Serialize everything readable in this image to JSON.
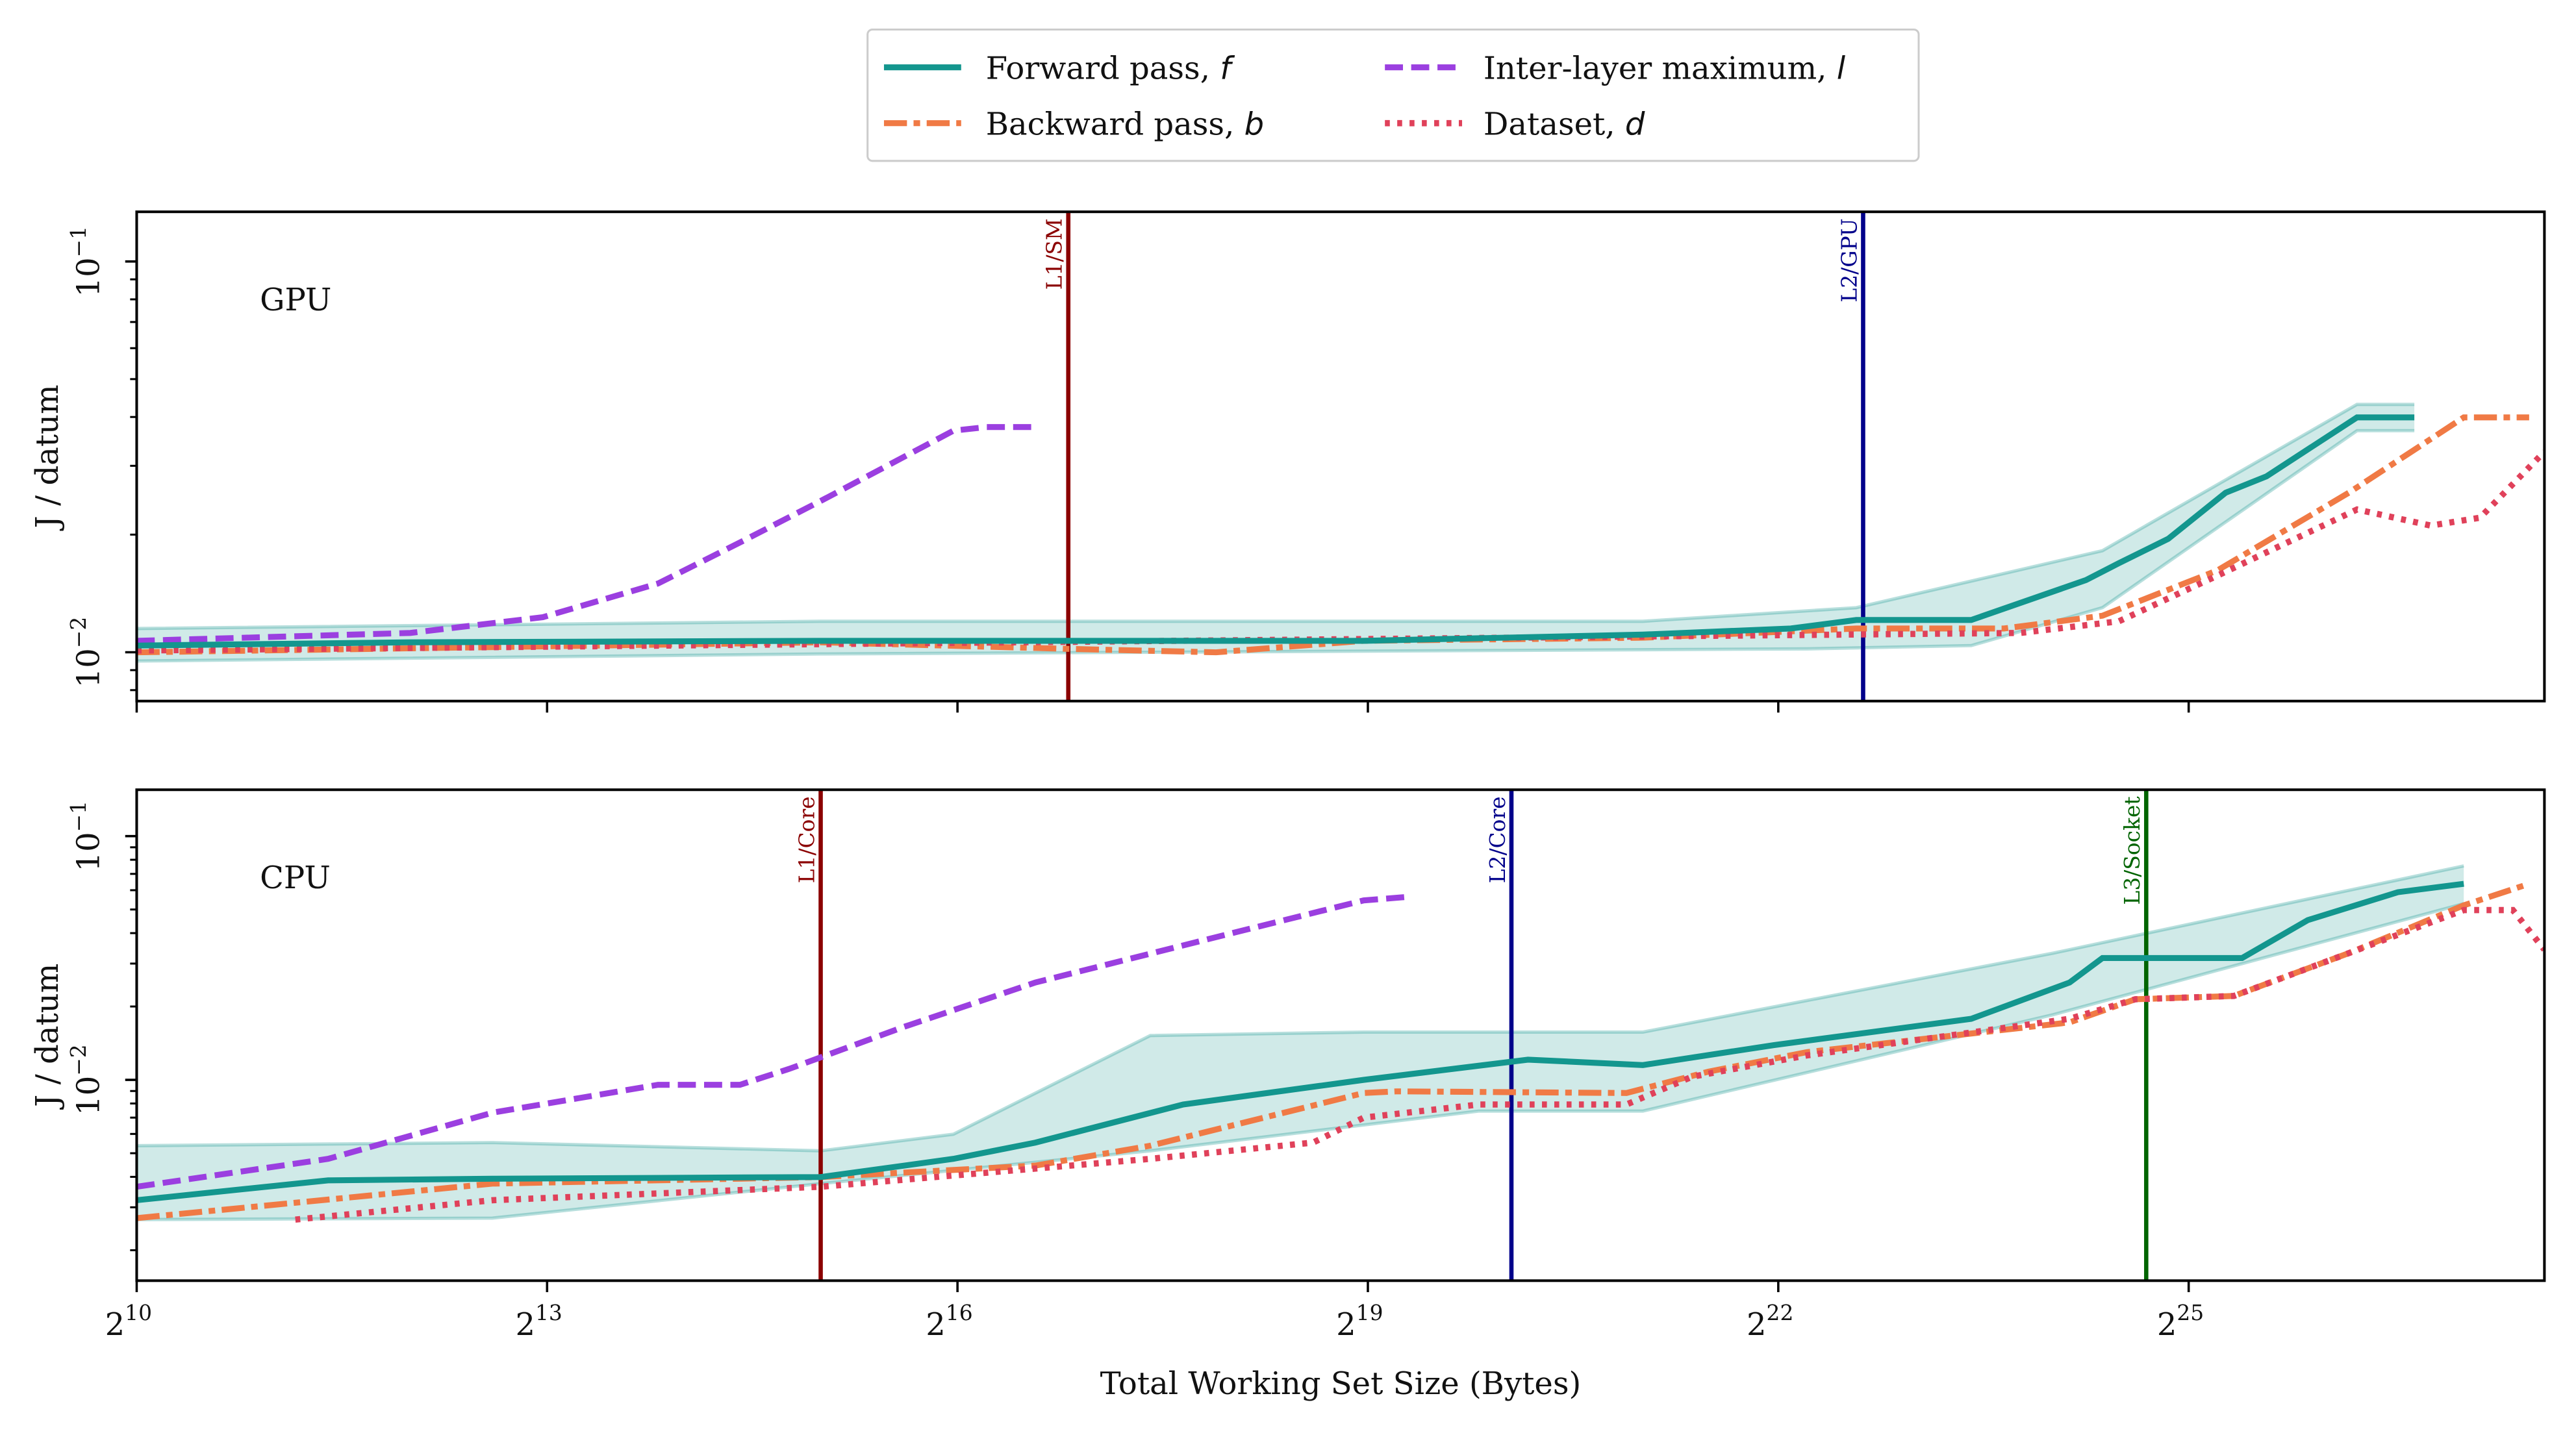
{
  "chart_data": [
    {
      "type": "line",
      "panel_label": "GPU",
      "ylabel": "J / datum",
      "xscale": "log2",
      "yscale": "log10",
      "xlim": [
        1024,
        203500000
      ],
      "ylim": [
        0.0075,
        0.134
      ],
      "yticks": [
        {
          "value": 0.01,
          "label": "10",
          "exp": "−2"
        },
        {
          "value": 0.1,
          "label": "10",
          "exp": "−1"
        }
      ],
      "xtick_labels_shown": false,
      "vlines": [
        {
          "label": "L1/SM",
          "x": 114900,
          "color": "#8b0000"
        },
        {
          "label": "L2/GPU",
          "x": 6447000,
          "color": "#00008b"
        }
      ],
      "series": [
        {
          "name": "Forward pass",
          "key": "forward",
          "points": [
            [
              1024,
              0.0104
            ],
            [
              4096,
              0.0106
            ],
            [
              32768,
              0.0107
            ],
            [
              513300,
              0.0107
            ],
            [
              2112000,
              0.0111
            ],
            [
              4467000,
              0.0115
            ],
            [
              6226000,
              0.0121
            ],
            [
              11150000,
              0.0121
            ],
            [
              19950000,
              0.0153
            ],
            [
              23560000,
              0.0169
            ],
            [
              30240000,
              0.0195
            ],
            [
              40470000,
              0.0256
            ],
            [
              49800000,
              0.0282
            ],
            [
              78720000,
              0.0399
            ],
            [
              105300000,
              0.0399
            ]
          ],
          "band_upper": [
            [
              1024,
              0.0115
            ],
            [
              32768,
              0.012
            ],
            [
              2112000,
              0.012
            ],
            [
              6226000,
              0.013
            ],
            [
              21680000,
              0.0182
            ],
            [
              78720000,
              0.0431
            ],
            [
              105300000,
              0.0431
            ]
          ],
          "band_lower": [
            [
              1024,
              0.0095
            ],
            [
              32768,
              0.0099
            ],
            [
              4853000,
              0.0102
            ],
            [
              11150000,
              0.0104
            ],
            [
              21680000,
              0.013
            ],
            [
              78720000,
              0.0369
            ],
            [
              105300000,
              0.0369
            ]
          ]
        },
        {
          "name": "Backward pass",
          "key": "backward",
          "points": [
            [
              1024,
              0.01
            ],
            [
              32768,
              0.0106
            ],
            [
              114900,
              0.0102
            ],
            [
              242900,
              0.01
            ],
            [
              513300,
              0.0107
            ],
            [
              2112000,
              0.0109
            ],
            [
              6226000,
              0.0115
            ],
            [
              13160000,
              0.0115
            ],
            [
              21680000,
              0.0124
            ],
            [
              38820000,
              0.0162
            ],
            [
              75500000,
              0.0256
            ],
            [
              135200000,
              0.0399
            ],
            [
              188400000,
              0.0399
            ]
          ]
        },
        {
          "name": "Dataset",
          "key": "dataset",
          "points": [
            [
              1024,
              0.0101
            ],
            [
              14300000,
              0.0112
            ],
            [
              23560000,
              0.012
            ],
            [
              38820000,
              0.0157
            ],
            [
              78720000,
              0.0232
            ],
            [
              114400000,
              0.0211
            ],
            [
              146800000,
              0.0221
            ],
            [
              203500000,
              0.0326
            ]
          ]
        },
        {
          "name": "Inter-layer maximum",
          "key": "inter",
          "points": [
            [
              1024,
              0.0107
            ],
            [
              4096,
              0.0112
            ],
            [
              8020,
              0.0123
            ],
            [
              14370,
              0.015
            ],
            [
              21770,
              0.0191
            ],
            [
              32768,
              0.0244
            ],
            [
              64200,
              0.0369
            ],
            [
              75830,
              0.0377
            ],
            [
              97270,
              0.0377
            ]
          ]
        }
      ]
    },
    {
      "type": "line",
      "panel_label": "CPU",
      "ylabel": "J / datum",
      "xlabel": "Total Working Set Size (Bytes)",
      "xscale": "log2",
      "yscale": "log10",
      "xlim": [
        1024,
        203500000
      ],
      "ylim": [
        0.0015,
        0.155
      ],
      "yticks": [
        {
          "value": 0.01,
          "label": "10",
          "exp": "−2"
        },
        {
          "value": 0.1,
          "label": "10",
          "exp": "−1"
        }
      ],
      "xticks": [
        {
          "value": 1024,
          "label": "2",
          "exp": "10"
        },
        {
          "value": 8192,
          "label": "2",
          "exp": "13"
        },
        {
          "value": 65536,
          "label": "2",
          "exp": "16"
        },
        {
          "value": 524288,
          "label": "2",
          "exp": "19"
        },
        {
          "value": 4194304,
          "label": "2",
          "exp": "22"
        },
        {
          "value": 33554432,
          "label": "2",
          "exp": "25"
        }
      ],
      "vlines": [
        {
          "label": "L1/Core",
          "x": 32768,
          "color": "#8b0000"
        },
        {
          "label": "L2/Core",
          "x": 1085000,
          "color": "#00008b"
        },
        {
          "label": "L3/Socket",
          "x": 27060000,
          "color": "#006400"
        }
      ],
      "series": [
        {
          "name": "Forward pass",
          "key": "forward",
          "points": [
            [
              1024,
              0.00321
            ],
            [
              2702,
              0.00387
            ],
            [
              6210,
              0.00393
            ],
            [
              32768,
              0.00399
            ],
            [
              64200,
              0.00474
            ],
            [
              97270,
              0.00553
            ],
            [
              205700,
              0.00792
            ],
            [
              513300,
              0.01
            ],
            [
              1180000,
              0.0121
            ],
            [
              2112000,
              0.0115
            ],
            [
              4106000,
              0.0139
            ],
            [
              11150000,
              0.0178
            ],
            [
              18350000,
              0.0251
            ],
            [
              21680000,
              0.0316
            ],
            [
              43990000,
              0.0316
            ],
            [
              61340000,
              0.0452
            ],
            [
              96900000,
              0.0589
            ],
            [
              135200000,
              0.0637
            ]
          ],
          "band_upper": [
            [
              1024,
              0.00537
            ],
            [
              6210,
              0.00553
            ],
            [
              32768,
              0.00512
            ],
            [
              64200,
              0.00598
            ],
            [
              174200,
              0.0152
            ],
            [
              513300,
              0.0157
            ],
            [
              2112000,
              0.0157
            ],
            [
              16890000,
              0.0331
            ],
            [
              135200000,
              0.0755
            ]
          ],
          "band_lower": [
            [
              1024,
              0.00267
            ],
            [
              6210,
              0.00271
            ],
            [
              32768,
              0.00375
            ],
            [
              174200,
              0.00512
            ],
            [
              919100,
              0.00745
            ],
            [
              2112000,
              0.00745
            ],
            [
              16890000,
              0.0185
            ],
            [
              135200000,
              0.0528
            ]
          ]
        },
        {
          "name": "Backward pass",
          "key": "backward",
          "points": [
            [
              1024,
              0.00271
            ],
            [
              6210,
              0.00375
            ],
            [
              32768,
              0.00399
            ],
            [
              97270,
              0.00445
            ],
            [
              174200,
              0.00537
            ],
            [
              513300,
              0.00883
            ],
            [
              606600,
              0.00897
            ],
            [
              1943000,
              0.00883
            ],
            [
              2945000,
              0.0108
            ],
            [
              4853000,
              0.013
            ],
            [
              18350000,
              0.0172
            ],
            [
              25600000,
              0.0214
            ],
            [
              42180000,
              0.0221
            ],
            [
              75500000,
              0.0331
            ],
            [
              135200000,
              0.052
            ],
            [
              188400000,
              0.0637
            ]
          ]
        },
        {
          "name": "Dataset",
          "key": "dataset",
          "points": [
            [
              2288,
              0.00267
            ],
            [
              6210,
              0.00321
            ],
            [
              32768,
              0.00364
            ],
            [
              174200,
              0.00474
            ],
            [
              397400,
              0.00553
            ],
            [
              513300,
              0.007
            ],
            [
              919100,
              0.00792
            ],
            [
              1943000,
              0.00792
            ],
            [
              2710000,
              0.0103
            ],
            [
              4853000,
              0.0126
            ],
            [
              18350000,
              0.0178
            ],
            [
              25600000,
              0.0214
            ],
            [
              42180000,
              0.0221
            ],
            [
              75500000,
              0.0331
            ],
            [
              135200000,
              0.0497
            ],
            [
              173400000,
              0.0497
            ],
            [
              203500000,
              0.0342
            ]
          ]
        },
        {
          "name": "Inter-layer maximum",
          "key": "inter",
          "points": [
            [
              1024,
              0.00364
            ],
            [
              2702,
              0.00474
            ],
            [
              6210,
              0.00733
            ],
            [
              14370,
              0.00955
            ],
            [
              21770,
              0.00955
            ],
            [
              27940,
              0.0111
            ],
            [
              50000,
              0.0165
            ],
            [
              97270,
              0.0251
            ],
            [
              262144,
              0.0399
            ],
            [
              513300,
              0.0545
            ],
            [
              632300,
              0.0562
            ]
          ]
        }
      ]
    }
  ],
  "legend": {
    "placement": "top-center",
    "entries": [
      {
        "key": "forward",
        "label": "Forward pass, ",
        "symbol": "f"
      },
      {
        "key": "backward",
        "label": "Backward pass, ",
        "symbol": "b"
      },
      {
        "key": "inter",
        "label": "Inter-layer maximum, ",
        "symbol": "l"
      },
      {
        "key": "dataset",
        "label": "Dataset, ",
        "symbol": "d"
      }
    ]
  },
  "styles": {
    "forward": {
      "color": "#13968e",
      "dash": "solid"
    },
    "backward": {
      "color": "#f07a45",
      "dash": "dashdot"
    },
    "dataset": {
      "color": "#e0415a",
      "dash": "dotted"
    },
    "inter": {
      "color": "#9b3fe0",
      "dash": "dashed"
    }
  }
}
